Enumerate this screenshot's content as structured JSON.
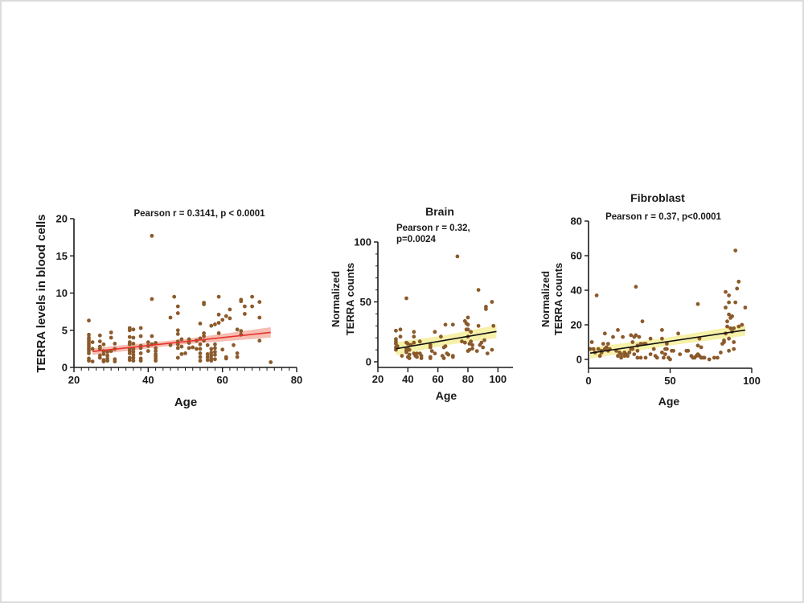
{
  "figure": {
    "point_color": "#8b5a2b",
    "background": "#ffffff"
  },
  "chart_data": [
    {
      "type": "scatter",
      "id": "blood",
      "title": "",
      "annotation": [
        "Pearson r = 0.3141, p < 0.0001"
      ],
      "xlabel": "Age",
      "ylabel": [
        "TERRA levels in blood cells"
      ],
      "xlim": [
        20,
        80
      ],
      "ylim": [
        0,
        20
      ],
      "xticks": [
        20,
        40,
        60,
        80
      ],
      "yticks": [
        0,
        5,
        10,
        15,
        20
      ],
      "x_minor_step": 2,
      "grid": false,
      "legend": "none",
      "fit": {
        "slope": 0.0535,
        "intercept": 0.8,
        "x_range": [
          25,
          73
        ],
        "ci_halfwidth_start": 0.45,
        "ci_halfwidth_end": 0.7,
        "line_color": "#e8332a",
        "band_color": "#f4b2a4"
      },
      "points": [
        [
          24,
          6.3
        ],
        [
          24,
          4.4
        ],
        [
          24,
          4.0
        ],
        [
          24,
          3.7
        ],
        [
          24,
          3.4
        ],
        [
          24,
          3.1
        ],
        [
          24,
          2.8
        ],
        [
          24,
          2.5
        ],
        [
          24,
          2.2
        ],
        [
          24,
          1.9
        ],
        [
          24,
          1.2
        ],
        [
          24,
          0.9
        ],
        [
          25,
          3.4
        ],
        [
          25,
          2.5
        ],
        [
          25,
          0.8
        ],
        [
          27,
          4.3
        ],
        [
          27,
          3.5
        ],
        [
          27,
          2.8
        ],
        [
          27,
          2.5
        ],
        [
          27,
          1.6
        ],
        [
          27,
          1.3
        ],
        [
          28,
          3.1
        ],
        [
          28,
          2.2
        ],
        [
          28,
          1.8
        ],
        [
          28,
          1.0
        ],
        [
          28,
          0.8
        ],
        [
          29,
          2.1
        ],
        [
          29,
          1.6
        ],
        [
          29,
          1.2
        ],
        [
          29,
          0.9
        ],
        [
          30,
          4.7
        ],
        [
          30,
          4.0
        ],
        [
          30,
          2.2
        ],
        [
          31,
          3.2
        ],
        [
          31,
          2.5
        ],
        [
          31,
          1.1
        ],
        [
          31,
          0.8
        ],
        [
          35,
          5.3
        ],
        [
          35,
          5.0
        ],
        [
          35,
          4.1
        ],
        [
          35,
          3.4
        ],
        [
          35,
          3.1
        ],
        [
          35,
          2.5
        ],
        [
          35,
          2.2
        ],
        [
          35,
          1.9
        ],
        [
          35,
          1.3
        ],
        [
          35,
          1.0
        ],
        [
          36,
          5.1
        ],
        [
          36,
          4.0
        ],
        [
          36,
          3.2
        ],
        [
          36,
          2.5
        ],
        [
          36,
          2.1
        ],
        [
          36,
          1.7
        ],
        [
          36,
          1.3
        ],
        [
          36,
          0.9
        ],
        [
          38,
          5.3
        ],
        [
          38,
          4.2
        ],
        [
          38,
          2.9
        ],
        [
          38,
          2.6
        ],
        [
          38,
          1.9
        ],
        [
          38,
          1.2
        ],
        [
          38,
          0.9
        ],
        [
          40,
          3.4
        ],
        [
          40,
          2.9
        ],
        [
          40,
          2.2
        ],
        [
          41,
          17.7
        ],
        [
          41,
          9.2
        ],
        [
          41,
          4.2
        ],
        [
          41,
          3.1
        ],
        [
          42,
          3.3
        ],
        [
          42,
          2.6
        ],
        [
          42,
          2.2
        ],
        [
          42,
          1.8
        ],
        [
          42,
          1.5
        ],
        [
          42,
          1.2
        ],
        [
          42,
          0.9
        ],
        [
          46,
          6.7
        ],
        [
          46,
          3.0
        ],
        [
          47,
          9.5
        ],
        [
          48,
          8.2
        ],
        [
          48,
          7.3
        ],
        [
          48,
          5.0
        ],
        [
          48,
          4.5
        ],
        [
          48,
          3.5
        ],
        [
          48,
          3.1
        ],
        [
          48,
          2.6
        ],
        [
          48,
          1.3
        ],
        [
          49,
          3.8
        ],
        [
          49,
          2.8
        ],
        [
          49,
          1.8
        ],
        [
          50,
          1.9
        ],
        [
          51,
          3.8
        ],
        [
          51,
          3.3
        ],
        [
          51,
          2.6
        ],
        [
          52,
          2.7
        ],
        [
          53,
          3.6
        ],
        [
          53,
          2.5
        ],
        [
          54,
          5.9
        ],
        [
          54,
          3.9
        ],
        [
          54,
          3.1
        ],
        [
          54,
          2.5
        ],
        [
          54,
          1.9
        ],
        [
          54,
          1.4
        ],
        [
          54,
          0.9
        ],
        [
          55,
          8.7
        ],
        [
          55,
          8.5
        ],
        [
          55,
          4.6
        ],
        [
          55,
          4.2
        ],
        [
          55,
          3.6
        ],
        [
          56,
          3.0
        ],
        [
          56,
          1.8
        ],
        [
          56,
          1.4
        ],
        [
          56,
          1.0
        ],
        [
          57,
          5.6
        ],
        [
          57,
          2.5
        ],
        [
          57,
          2.0
        ],
        [
          57,
          1.6
        ],
        [
          57,
          1.2
        ],
        [
          57,
          0.9
        ],
        [
          58,
          5.8
        ],
        [
          58,
          3.1
        ],
        [
          58,
          2.6
        ],
        [
          58,
          2.1
        ],
        [
          58,
          1.7
        ],
        [
          58,
          1.1
        ],
        [
          59,
          9.5
        ],
        [
          59,
          7.1
        ],
        [
          59,
          6.0
        ],
        [
          59,
          4.6
        ],
        [
          60,
          6.4
        ],
        [
          60,
          2.4
        ],
        [
          61,
          6.9
        ],
        [
          61,
          1.4
        ],
        [
          61,
          1.2
        ],
        [
          62,
          7.8
        ],
        [
          62,
          6.6
        ],
        [
          63,
          3.0
        ],
        [
          64,
          5.1
        ],
        [
          64,
          1.9
        ],
        [
          64,
          1.4
        ],
        [
          65,
          9.1
        ],
        [
          65,
          8.9
        ],
        [
          65,
          4.9
        ],
        [
          65,
          4.4
        ],
        [
          66,
          8.2
        ],
        [
          66,
          7.2
        ],
        [
          68,
          9.5
        ],
        [
          68,
          8.2
        ],
        [
          70,
          8.8
        ],
        [
          70,
          6.7
        ],
        [
          70,
          3.6
        ],
        [
          73,
          0.7
        ]
      ]
    },
    {
      "type": "scatter",
      "id": "brain",
      "title": "Brain",
      "annotation": [
        "Pearson r = 0.32,",
        "p=0.0024"
      ],
      "xlabel": "Age",
      "ylabel": [
        "Normalized",
        "TERRA counts"
      ],
      "xlim": [
        20,
        110
      ],
      "ylim": [
        0,
        100
      ],
      "xticks": [
        20,
        40,
        60,
        80,
        100
      ],
      "yticks": [
        0,
        50,
        100
      ],
      "y_minor_step": 10,
      "grid": false,
      "legend": "none",
      "fit": {
        "slope": 0.215,
        "intercept": 4.0,
        "x_range": [
          32,
          99
        ],
        "ci_halfwidth_start": 5.5,
        "ci_halfwidth_end": 5.5,
        "line_color": "#111111",
        "band_color": "#f5ee9a"
      },
      "points": [
        [
          32,
          26
        ],
        [
          32,
          19
        ],
        [
          32,
          17
        ],
        [
          32,
          15
        ],
        [
          32,
          12
        ],
        [
          32,
          10
        ],
        [
          33,
          13
        ],
        [
          35,
          27
        ],
        [
          35,
          21
        ],
        [
          36,
          5
        ],
        [
          39,
          53
        ],
        [
          39,
          16
        ],
        [
          39,
          11
        ],
        [
          39,
          10
        ],
        [
          39,
          9
        ],
        [
          39,
          8
        ],
        [
          40,
          15
        ],
        [
          40,
          11
        ],
        [
          40,
          10
        ],
        [
          40,
          4
        ],
        [
          41,
          10
        ],
        [
          41,
          6
        ],
        [
          41,
          3
        ],
        [
          42,
          14
        ],
        [
          44,
          25
        ],
        [
          44,
          21
        ],
        [
          44,
          16
        ],
        [
          44,
          7
        ],
        [
          45,
          6
        ],
        [
          45,
          5
        ],
        [
          46,
          7
        ],
        [
          46,
          4
        ],
        [
          48,
          17
        ],
        [
          48,
          7
        ],
        [
          49,
          5
        ],
        [
          49,
          3
        ],
        [
          55,
          14
        ],
        [
          55,
          12
        ],
        [
          55,
          4
        ],
        [
          55,
          3
        ],
        [
          56,
          9
        ],
        [
          58,
          25
        ],
        [
          58,
          7
        ],
        [
          62,
          21
        ],
        [
          63,
          5
        ],
        [
          64,
          12
        ],
        [
          64,
          3
        ],
        [
          65,
          31
        ],
        [
          65,
          13
        ],
        [
          66,
          7
        ],
        [
          67,
          6
        ],
        [
          70,
          31
        ],
        [
          70,
          5
        ],
        [
          70,
          4
        ],
        [
          73,
          88
        ],
        [
          76,
          17
        ],
        [
          78,
          34
        ],
        [
          78,
          16
        ],
        [
          79,
          32
        ],
        [
          79,
          27
        ],
        [
          80,
          37
        ],
        [
          80,
          31
        ],
        [
          80,
          27
        ],
        [
          80,
          21
        ],
        [
          80,
          9
        ],
        [
          81,
          15
        ],
        [
          81,
          10
        ],
        [
          82,
          25
        ],
        [
          82,
          17
        ],
        [
          83,
          14
        ],
        [
          83,
          11
        ],
        [
          86,
          9
        ],
        [
          87,
          60
        ],
        [
          87,
          30
        ],
        [
          88,
          14
        ],
        [
          89,
          16
        ],
        [
          90,
          12
        ],
        [
          91,
          18
        ],
        [
          92,
          46
        ],
        [
          92,
          44
        ],
        [
          93,
          7
        ],
        [
          96,
          50
        ],
        [
          96,
          10
        ],
        [
          97,
          30
        ]
      ]
    },
    {
      "type": "scatter",
      "id": "fibroblast",
      "title": "Fibroblast",
      "annotation": [
        "Pearson r = 0.37, p<0.0001"
      ],
      "xlabel": "Age",
      "ylabel": [
        "Normalized",
        "TERRA counts"
      ],
      "xlim": [
        0,
        100
      ],
      "ylim": [
        0,
        80
      ],
      "xticks": [
        0,
        50,
        100
      ],
      "yticks": [
        0,
        20,
        40,
        60,
        80
      ],
      "grid": false,
      "legend": "none",
      "fit": {
        "slope": 0.14,
        "intercept": 3.5,
        "x_range": [
          1,
          96
        ],
        "ci_halfwidth_start": 3.2,
        "ci_halfwidth_end": 3.2,
        "line_color": "#111111",
        "band_color": "#f5ee9a"
      },
      "points": [
        [
          1,
          6
        ],
        [
          2,
          10
        ],
        [
          3,
          6
        ],
        [
          4,
          4
        ],
        [
          5,
          37
        ],
        [
          6,
          6
        ],
        [
          7,
          2
        ],
        [
          8,
          5
        ],
        [
          8,
          4
        ],
        [
          9,
          9
        ],
        [
          10,
          15
        ],
        [
          10,
          6
        ],
        [
          11,
          7
        ],
        [
          12,
          5
        ],
        [
          12,
          9
        ],
        [
          13,
          6
        ],
        [
          15,
          13
        ],
        [
          17,
          5
        ],
        [
          18,
          17
        ],
        [
          18,
          2
        ],
        [
          19,
          4
        ],
        [
          20,
          3
        ],
        [
          20,
          1
        ],
        [
          21,
          13
        ],
        [
          22,
          4
        ],
        [
          22,
          2
        ],
        [
          23,
          3
        ],
        [
          24,
          2
        ],
        [
          25,
          4
        ],
        [
          26,
          14
        ],
        [
          26,
          6
        ],
        [
          27,
          10
        ],
        [
          27,
          6
        ],
        [
          28,
          13
        ],
        [
          28,
          3
        ],
        [
          29,
          42
        ],
        [
          29,
          14
        ],
        [
          30,
          8
        ],
        [
          30,
          5
        ],
        [
          30,
          1
        ],
        [
          31,
          13
        ],
        [
          32,
          9
        ],
        [
          32,
          1
        ],
        [
          33,
          22
        ],
        [
          34,
          9
        ],
        [
          35,
          9
        ],
        [
          35,
          1
        ],
        [
          38,
          12
        ],
        [
          38,
          3
        ],
        [
          40,
          6
        ],
        [
          41,
          2
        ],
        [
          42,
          1
        ],
        [
          45,
          17
        ],
        [
          45,
          12
        ],
        [
          45,
          4
        ],
        [
          46,
          1
        ],
        [
          47,
          6
        ],
        [
          47,
          3
        ],
        [
          48,
          9
        ],
        [
          48,
          6
        ],
        [
          49,
          1
        ],
        [
          50,
          0
        ],
        [
          51,
          5
        ],
        [
          52,
          5
        ],
        [
          55,
          15
        ],
        [
          56,
          3
        ],
        [
          60,
          5
        ],
        [
          61,
          5
        ],
        [
          63,
          2
        ],
        [
          64,
          1
        ],
        [
          65,
          1
        ],
        [
          66,
          2
        ],
        [
          67,
          32
        ],
        [
          67,
          8
        ],
        [
          67,
          3
        ],
        [
          68,
          12
        ],
        [
          68,
          2
        ],
        [
          69,
          7
        ],
        [
          69,
          1
        ],
        [
          70,
          1
        ],
        [
          71,
          1
        ],
        [
          74,
          0
        ],
        [
          77,
          1
        ],
        [
          79,
          1
        ],
        [
          81,
          4
        ],
        [
          82,
          9
        ],
        [
          83,
          11
        ],
        [
          83,
          10
        ],
        [
          84,
          39
        ],
        [
          84,
          30
        ],
        [
          84,
          15
        ],
        [
          85,
          22
        ],
        [
          85,
          19
        ],
        [
          86,
          37
        ],
        [
          86,
          33
        ],
        [
          86,
          26
        ],
        [
          86,
          12
        ],
        [
          86,
          5
        ],
        [
          87,
          24
        ],
        [
          87,
          18
        ],
        [
          88,
          25
        ],
        [
          88,
          16
        ],
        [
          89,
          18
        ],
        [
          89,
          10
        ],
        [
          89,
          6
        ],
        [
          90,
          63
        ],
        [
          90,
          33
        ],
        [
          91,
          41
        ],
        [
          92,
          45
        ],
        [
          92,
          19
        ],
        [
          94,
          20
        ],
        [
          96,
          30
        ]
      ]
    }
  ]
}
